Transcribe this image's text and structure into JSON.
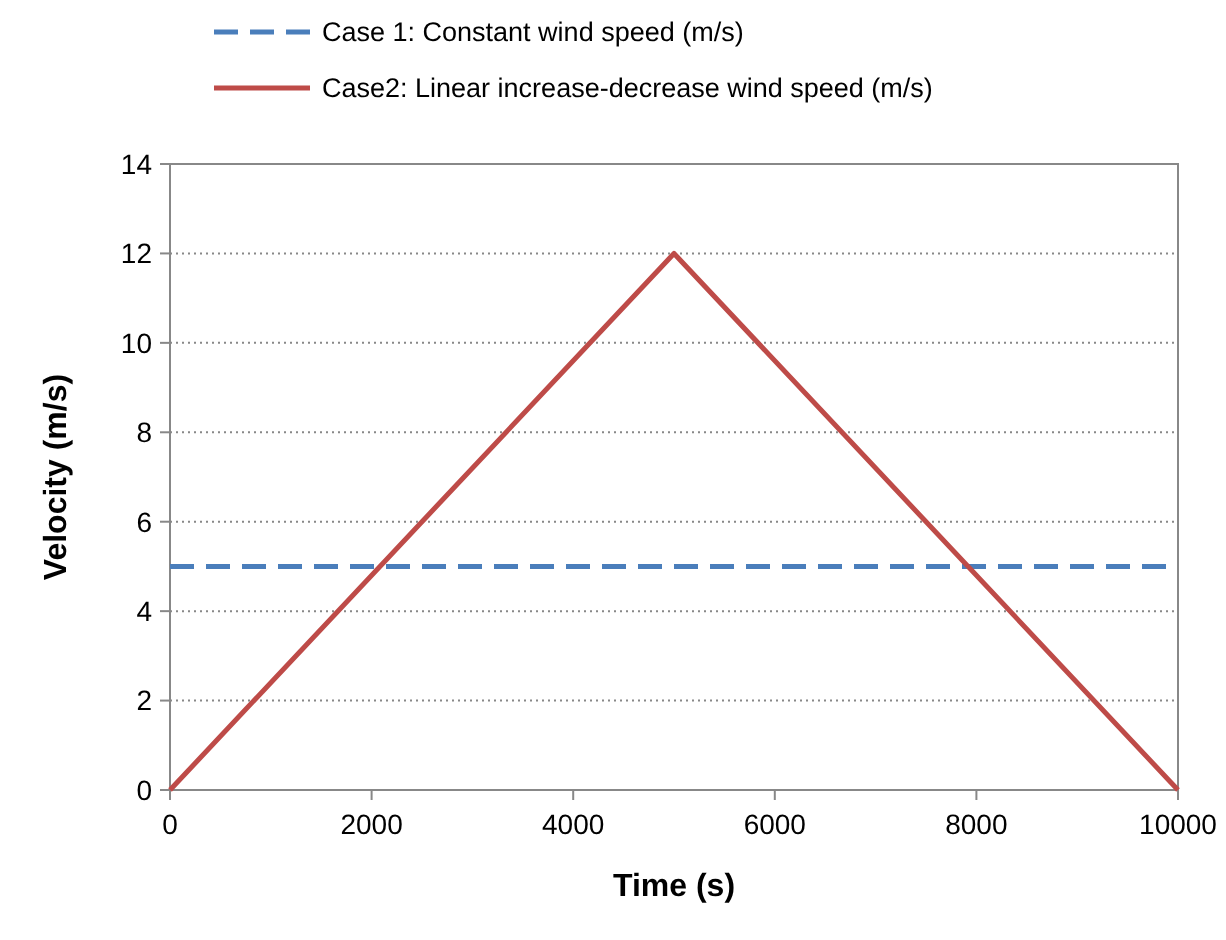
{
  "chart_data": {
    "type": "line",
    "xlabel": "Time (s)",
    "ylabel": "Velocity (m/s)",
    "xlim": [
      0,
      10000
    ],
    "xticks": [
      0,
      2000,
      4000,
      6000,
      8000,
      10000
    ],
    "ylim": [
      0,
      14
    ],
    "yticks": [
      0,
      2,
      4,
      6,
      8,
      10,
      12,
      14
    ],
    "grid": "y",
    "legend": "top",
    "marker": "none",
    "series": [
      {
        "name": "Case 1: Constant wind speed (m/s)",
        "color": "#4a7ebb",
        "line_style": "dashed",
        "x": [
          0,
          10000
        ],
        "values": [
          5,
          5
        ]
      },
      {
        "name": "Case2: Linear increase-decrease wind speed (m/s)",
        "color": "#be4b48",
        "line_style": "solid",
        "x": [
          0,
          5000,
          10000
        ],
        "values": [
          0,
          12,
          0
        ]
      }
    ]
  }
}
